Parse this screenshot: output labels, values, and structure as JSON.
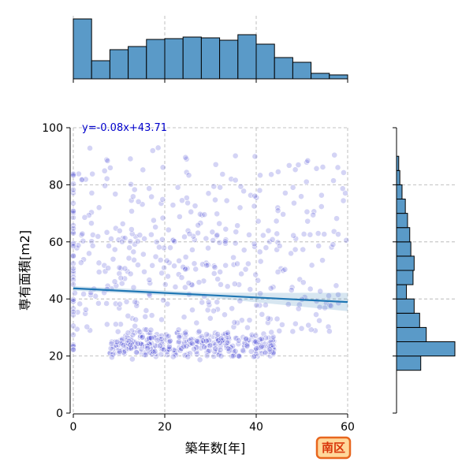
{
  "chart_data": {
    "type": "scatter",
    "xlabel": "築年数[年]",
    "ylabel": "専有面積[m2]",
    "xlim": [
      0,
      60
    ],
    "ylim": [
      0,
      100
    ],
    "xticks": [
      0,
      20,
      40,
      60
    ],
    "yticks": [
      0,
      20,
      40,
      60,
      80,
      100
    ],
    "grid": true,
    "regression": {
      "label": "y=-0.08x+43.71",
      "slope": -0.08,
      "intercept": 43.71,
      "x_range": [
        0,
        60
      ]
    },
    "badge": "南区",
    "colors": {
      "points": "#3a3ad0",
      "regression": "#1f77b4",
      "hist": "#5a9ac8",
      "badge_fill": "#ffd79a",
      "badge_border": "#e8661e",
      "badge_text": "#d9360b",
      "annotation": "#0000cc"
    },
    "marginal_x": {
      "bins": [
        0,
        4,
        8,
        12,
        16,
        20,
        24,
        28,
        32,
        36,
        40,
        44,
        48,
        52,
        56,
        60
      ],
      "counts": [
        76,
        23,
        37,
        41,
        50,
        51,
        53,
        52,
        49,
        56,
        44,
        27,
        21,
        7,
        5
      ]
    },
    "marginal_y": {
      "bins": [
        15,
        20,
        25,
        30,
        35,
        40,
        45,
        50,
        55,
        60,
        65,
        70,
        75,
        80,
        85,
        90
      ],
      "counts": [
        22,
        53,
        27,
        21,
        16,
        9,
        15,
        16,
        13,
        12,
        10,
        8,
        5,
        3,
        2
      ]
    }
  }
}
